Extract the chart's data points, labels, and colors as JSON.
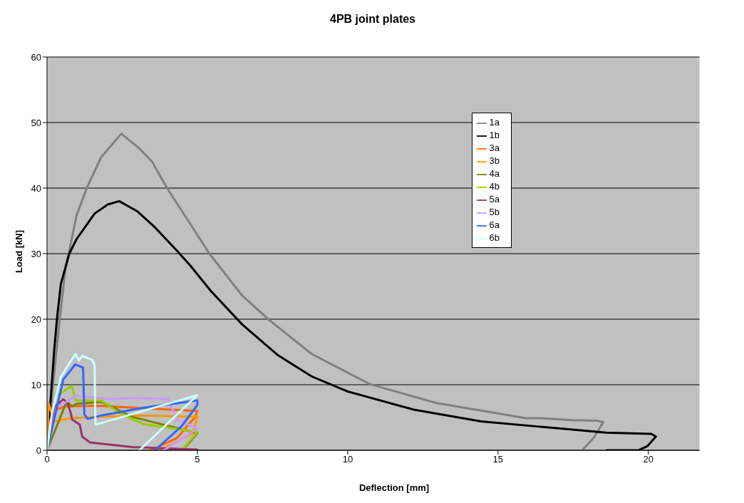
{
  "chart_data": {
    "type": "line",
    "title": "4PB joint plates",
    "xlabel": "Deflection [mm]",
    "ylabel": "Load [kN]",
    "xlim": [
      0,
      21.7
    ],
    "xticks": [
      0,
      5,
      10,
      15,
      20
    ],
    "ylim": [
      0,
      60
    ],
    "yticks": [
      0,
      10,
      20,
      30,
      40,
      50,
      60
    ],
    "grid": "y",
    "legend": "top right",
    "marker": "none",
    "line_style": "solid",
    "series": [
      {
        "name": "1a",
        "color": "#808080",
        "x": [
          0,
          0.2,
          0.42,
          0.61,
          0.98,
          1.32,
          1.8,
          2.47,
          3.06,
          3.5,
          4.03,
          4.7,
          5.4,
          6.49,
          7.38,
          8.8,
          10.73,
          12.96,
          15.94,
          16.4,
          17.5,
          18.3,
          18.5,
          18.2,
          17.8
        ],
        "values": [
          0,
          10,
          20,
          27.6,
          35.8,
          40,
          44.7,
          48.3,
          46.1,
          44,
          39.7,
          35,
          30,
          23.6,
          19.9,
          14.7,
          10.1,
          7.2,
          4.9,
          4.9,
          4.6,
          4.5,
          4.3,
          2,
          0
        ]
      },
      {
        "name": "1b",
        "color": "#000000",
        "x": [
          0,
          0.24,
          0.33,
          0.46,
          0.74,
          0.98,
          1.58,
          2.02,
          2.4,
          2.99,
          3.59,
          4.33,
          4.78,
          5.45,
          6.49,
          7.68,
          8.79,
          9.98,
          12.2,
          14.44,
          16.38,
          18.6,
          20.1,
          20.25,
          19.96,
          19.66,
          18.6
        ],
        "values": [
          0,
          15.4,
          20,
          25.4,
          30,
          32.2,
          36.1,
          37.5,
          38,
          36.5,
          34,
          30.4,
          28.1,
          24.3,
          19.2,
          14.5,
          11.3,
          9,
          6.2,
          4.4,
          3.6,
          2.7,
          2.5,
          2.1,
          0.6,
          0,
          0
        ]
      },
      {
        "name": "3a",
        "color": "#ff6600",
        "x": [
          0,
          0.09,
          0.31,
          0.6,
          1.73,
          3.21,
          5,
          4.93,
          4.33,
          3.44
        ],
        "values": [
          0,
          4.4,
          6.2,
          6.7,
          6.8,
          6.4,
          6,
          5.1,
          1.9,
          0
        ]
      },
      {
        "name": "3b",
        "color": "#ff9900",
        "x": [
          0,
          0.05,
          0.24,
          0.76,
          1.73,
          3.21,
          5,
          4.85,
          3.74
        ],
        "values": [
          0,
          7.2,
          4.4,
          4.9,
          5.1,
          5.3,
          5.1,
          2.6,
          0
        ]
      },
      {
        "name": "4a",
        "color": "#808000",
        "x": [
          0,
          0.65,
          0.83,
          0.98,
          1.8,
          2.84,
          5,
          4.6
        ],
        "values": [
          0,
          7.4,
          6.7,
          7.1,
          7.4,
          5.1,
          2.6,
          0.5
        ]
      },
      {
        "name": "4b",
        "color": "#99cc00",
        "x": [
          0,
          0.31,
          0.83,
          0.95,
          1.06,
          1.8,
          2.47,
          3.21,
          5,
          4.48
        ],
        "values": [
          0,
          8.3,
          9.8,
          7.6,
          7.6,
          7.6,
          5.5,
          4,
          2.8,
          0
        ]
      },
      {
        "name": "5a",
        "color": "#993366",
        "x": [
          0,
          0.24,
          0.54,
          0.68,
          0.8,
          0.83,
          1.09,
          1.17,
          1.43,
          2.84,
          5
        ],
        "values": [
          0,
          6.5,
          7.8,
          7.2,
          5.5,
          4.7,
          3.9,
          2.1,
          1.2,
          0.5,
          0.1
        ]
      },
      {
        "name": "5b",
        "color": "#cc99ff",
        "x": [
          0,
          0.31,
          0.98,
          2.1,
          2.84,
          4.03,
          4.33,
          5,
          3.88
        ],
        "values": [
          0,
          6.5,
          8.3,
          7.8,
          8,
          7.8,
          4.7,
          3.3,
          0
        ]
      },
      {
        "name": "6a",
        "color": "#3366ff",
        "x": [
          0,
          0.54,
          0.94,
          1.2,
          1.24,
          1.35,
          1.8,
          3.21,
          5,
          5,
          4.48,
          3.59
        ],
        "values": [
          0,
          10.8,
          13.1,
          12.6,
          5.5,
          4.8,
          5.3,
          6.5,
          7.6,
          6.9,
          3.7,
          0
        ]
      },
      {
        "name": "6b",
        "color": "#ccffff",
        "x": [
          0,
          0.16,
          0.46,
          0.94,
          1.06,
          1.17,
          1.5,
          1.58,
          1.61,
          5,
          3.07
        ],
        "values": [
          0,
          5.5,
          11.2,
          14.7,
          13.7,
          14.4,
          13.8,
          13.1,
          3.9,
          8.4,
          0
        ]
      }
    ]
  }
}
